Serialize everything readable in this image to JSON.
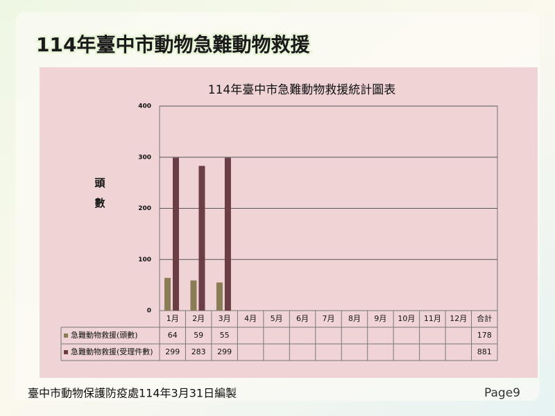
{
  "slide_title": "114年臺中市動物急難動物救援",
  "footer": "臺中市動物保護防疫處114年3月31日編製",
  "page": "Page9",
  "chart_data": {
    "type": "bar",
    "title": "114年臺中市急難動物救援統計圖表",
    "y_label": "頭數",
    "categories": [
      "1月",
      "2月",
      "3月",
      "4月",
      "5月",
      "6月",
      "7月",
      "8月",
      "9月",
      "10月",
      "11月",
      "12月"
    ],
    "series": [
      {
        "name": "急難動物救援(頭數)",
        "color": "#8a7c55",
        "values": [
          64,
          59,
          55,
          null,
          null,
          null,
          null,
          null,
          null,
          null,
          null,
          null
        ]
      },
      {
        "name": "急難動物救援(受理件數)",
        "color": "#6b3e44",
        "values": [
          299,
          283,
          299,
          null,
          null,
          null,
          null,
          null,
          null,
          null,
          null,
          null
        ]
      }
    ],
    "total_label": "合計",
    "totals": [
      178,
      881
    ],
    "ylim": [
      0,
      400
    ],
    "yticks": [
      0,
      100,
      200,
      300,
      400
    ],
    "grid": true
  }
}
